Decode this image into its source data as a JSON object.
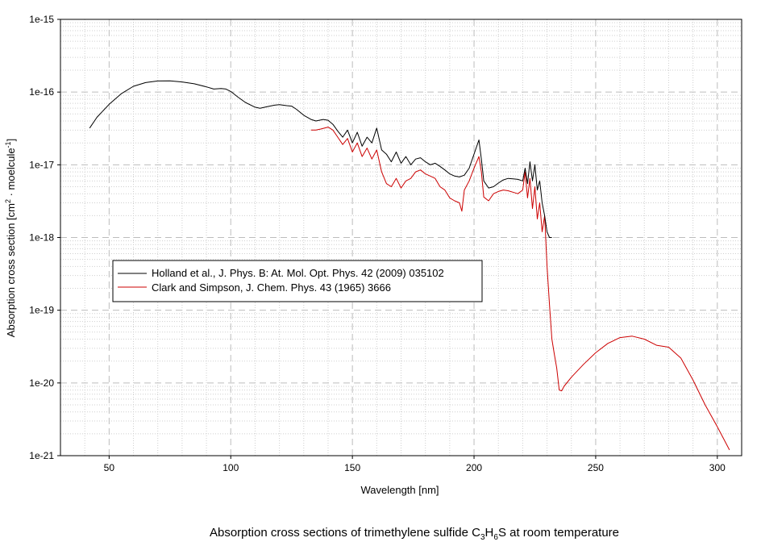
{
  "chart_data": {
    "type": "line",
    "xlabel": "Wavelength [nm]",
    "ylabel": {
      "prefix": "Absorption cross section [cm",
      "sup1": "2",
      "middle": " · moelcule",
      "sup2": "-1",
      "suffix": "]"
    },
    "caption": {
      "prefix": "Absorption cross sections of trimethylene sulfide C",
      "sub1": "3",
      "mid1": "H",
      "sub2": "6",
      "suffix": "S at room temperature"
    },
    "xlim": [
      30,
      310
    ],
    "ylim": [
      1e-21,
      1e-15
    ],
    "yscale": "log",
    "grid": true,
    "legend_position": "center-left",
    "x_ticks": [
      50,
      100,
      150,
      200,
      250,
      300
    ],
    "x_tick_labels": [
      "50",
      "100",
      "150",
      "200",
      "250",
      "300"
    ],
    "y_ticks": [
      1e-21,
      1e-20,
      1e-19,
      1e-18,
      1e-17,
      1e-16,
      1e-15
    ],
    "y_tick_labels": [
      "1e-21",
      "1e-20",
      "1e-19",
      "1e-18",
      "1e-17",
      "1e-16",
      "1e-15"
    ],
    "series": [
      {
        "name": "Holland et al., J. Phys. B: At. Mol. Opt. Phys. 42 (2009) 035102",
        "color": "#000000",
        "x": [
          42,
          45,
          50,
          55,
          60,
          65,
          70,
          75,
          80,
          85,
          90,
          93,
          96,
          98,
          100,
          103,
          106,
          110,
          112,
          115,
          118,
          120,
          123,
          125,
          127,
          130,
          133,
          135,
          138,
          140,
          142,
          144,
          146,
          148,
          150,
          152,
          154,
          156,
          158,
          160,
          162,
          164,
          166,
          168,
          170,
          172,
          174,
          176,
          178,
          180,
          182,
          184,
          186,
          188,
          190,
          192,
          194,
          196,
          198,
          200,
          202,
          203,
          204,
          206,
          208,
          210,
          212,
          214,
          216,
          218,
          220,
          221,
          222,
          223,
          224,
          225,
          226,
          227,
          228,
          229,
          230,
          231,
          232
        ],
        "y": [
          3.2e-17,
          4.5e-17,
          6.8e-17,
          9.5e-17,
          1.2e-16,
          1.35e-16,
          1.42e-16,
          1.43e-16,
          1.38e-16,
          1.3e-16,
          1.18e-16,
          1.1e-16,
          1.12e-16,
          1.1e-16,
          1.02e-16,
          8.5e-17,
          7.2e-17,
          6.2e-17,
          6e-17,
          6.3e-17,
          6.6e-17,
          6.7e-17,
          6.5e-17,
          6.4e-17,
          5.8e-17,
          4.8e-17,
          4.2e-17,
          4e-17,
          4.2e-17,
          4.1e-17,
          3.6e-17,
          2.9e-17,
          2.4e-17,
          3e-17,
          2e-17,
          2.8e-17,
          1.8e-17,
          2.4e-17,
          2e-17,
          3.2e-17,
          1.6e-17,
          1.4e-17,
          1.1e-17,
          1.5e-17,
          1.05e-17,
          1.3e-17,
          1e-17,
          1.2e-17,
          1.25e-17,
          1.1e-17,
          1e-17,
          1.05e-17,
          9.5e-18,
          8.5e-18,
          7.5e-18,
          7e-18,
          6.8e-18,
          7.2e-18,
          9e-18,
          1.4e-17,
          2.2e-17,
          1.2e-17,
          6e-18,
          4.8e-18,
          5e-18,
          5.6e-18,
          6.2e-18,
          6.5e-18,
          6.4e-18,
          6.3e-18,
          6e-18,
          9e-18,
          5.5e-18,
          1.1e-17,
          6e-18,
          1e-17,
          4.5e-18,
          6e-18,
          3e-18,
          2e-18,
          1.2e-18,
          1e-18,
          1e-18
        ]
      },
      {
        "name": "Clark and Simpson, J. Chem. Phys. 43 (1965) 3666",
        "color": "#cc0000",
        "x": [
          133,
          135,
          137,
          140,
          142,
          144,
          146,
          148,
          150,
          152,
          154,
          156,
          158,
          160,
          162,
          164,
          166,
          168,
          170,
          172,
          174,
          176,
          178,
          180,
          182,
          184,
          186,
          188,
          190,
          192,
          194,
          195,
          196,
          198,
          200,
          202,
          203,
          204,
          206,
          208,
          210,
          212,
          214,
          216,
          218,
          220,
          221,
          222,
          223,
          224,
          225,
          226,
          227,
          228,
          229,
          230,
          231,
          232,
          233,
          234,
          235,
          236,
          237,
          240,
          245,
          250,
          255,
          260,
          265,
          270,
          275,
          280,
          285,
          290,
          295,
          300,
          305
        ],
        "y": [
          3e-17,
          3e-17,
          3.1e-17,
          3.3e-17,
          3e-17,
          2.4e-17,
          1.9e-17,
          2.3e-17,
          1.5e-17,
          2e-17,
          1.3e-17,
          1.7e-17,
          1.2e-17,
          1.6e-17,
          8e-18,
          5.5e-18,
          5e-18,
          6.5e-18,
          4.8e-18,
          6e-18,
          6.5e-18,
          8e-18,
          8.5e-18,
          7.5e-18,
          7e-18,
          6.5e-18,
          5e-18,
          4.5e-18,
          3.5e-18,
          3.2e-18,
          3e-18,
          2.3e-18,
          4.5e-18,
          6e-18,
          9e-18,
          1.3e-17,
          8e-18,
          3.6e-18,
          3.2e-18,
          4e-18,
          4.3e-18,
          4.5e-18,
          4.4e-18,
          4.2e-18,
          4e-18,
          4.5e-18,
          8e-18,
          3.5e-18,
          6.5e-18,
          2.5e-18,
          5e-18,
          1.8e-18,
          3e-18,
          1.2e-18,
          2e-18,
          4e-19,
          1.2e-19,
          4e-20,
          2.5e-20,
          1.6e-20,
          8e-21,
          7.8e-21,
          9e-21,
          1.2e-20,
          1.8e-20,
          2.6e-20,
          3.5e-20,
          4.2e-20,
          4.4e-20,
          4e-20,
          3.3e-20,
          3.1e-20,
          2.2e-20,
          1.1e-20,
          5e-21,
          2.5e-21,
          1.2e-21
        ]
      }
    ]
  }
}
